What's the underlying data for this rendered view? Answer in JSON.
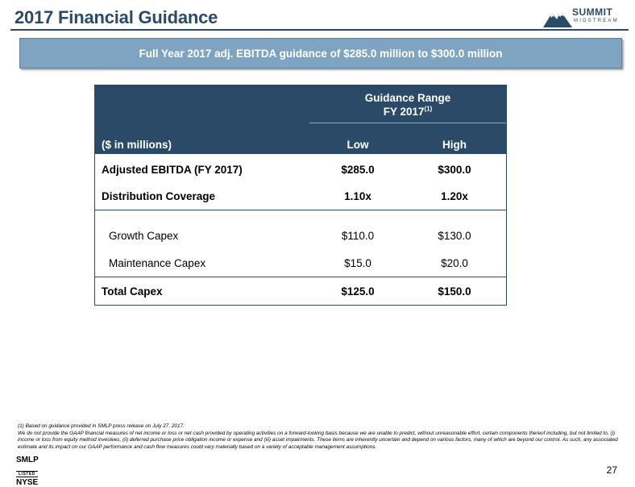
{
  "header": {
    "title": "2017 Financial Guidance",
    "logo_name": "SUMMIT",
    "logo_sub": "MIDSTREAM"
  },
  "banner": {
    "text": "Full Year 2017 adj. EBITDA guidance of $285.0 million to $300.0 million"
  },
  "table": {
    "range_title": "Guidance Range",
    "range_period": "FY 2017",
    "range_note": "(1)",
    "units_label": "($ in millions)",
    "col_low": "Low",
    "col_high": "High",
    "rows": [
      {
        "label": "Adjusted EBITDA (FY 2017)",
        "low": "$285.0",
        "high": "$300.0"
      },
      {
        "label": "Distribution Coverage",
        "low": "1.10x",
        "high": "1.20x"
      },
      {
        "label": "Growth Capex",
        "low": "$110.0",
        "high": "$130.0"
      },
      {
        "label": "Maintenance Capex",
        "low": "$15.0",
        "high": "$20.0"
      },
      {
        "label": "Total Capex",
        "low": "$125.0",
        "high": "$150.0"
      }
    ]
  },
  "footnote": {
    "line1": "(1) Based on guidance provided in SMLP press release on July 27, 2017.",
    "line2": "We do not provide the GAAP financial measures of net income or loss or net cash provided by operating activities on a forward-looking basis because we are unable to predict, without unreasonable effort, certain components thereof including, but not limited to, (i) income or loss from equity method investees, (ii) deferred purchase price obligation income or expense and (iii) asset impairments. These items are inherently uncertain and depend on various factors, many of which are beyond our control. As such, any associated estimate and its impact on our GAAP performance and cash flow measures could vary materially based on a variety of acceptable management assumptions."
  },
  "footer": {
    "ticker": "SMLP",
    "listed": "LISTED",
    "exchange": "NYSE",
    "page_number": "27"
  },
  "colors": {
    "navy": "#2b4a68",
    "banner": "#7fa4c1"
  }
}
